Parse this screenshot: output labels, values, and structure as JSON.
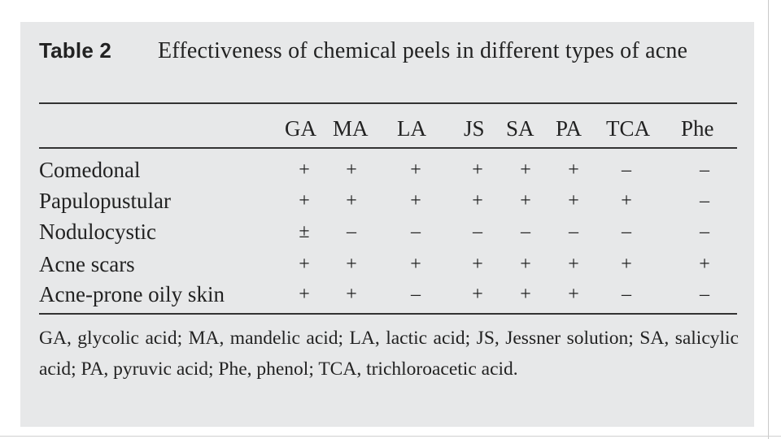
{
  "table": {
    "label": "Table 2",
    "title": "Effectiveness of chemical peels in different types of acne",
    "columns": [
      "GA",
      "MA",
      "LA",
      "JS",
      "SA",
      "PA",
      "TCA",
      "Phe"
    ],
    "rows": [
      {
        "label": "Comedonal",
        "values": [
          "+",
          "+",
          "+",
          "+",
          "+",
          "+",
          "–",
          "–"
        ]
      },
      {
        "label": "Papulopustular",
        "values": [
          "+",
          "+",
          "+",
          "+",
          "+",
          "+",
          "+",
          "–"
        ]
      },
      {
        "label": "Nodulocystic",
        "values": [
          "±",
          "–",
          "–",
          "–",
          "–",
          "–",
          "–",
          "–"
        ]
      },
      {
        "label": "Acne scars",
        "values": [
          "+",
          "+",
          "+",
          "+",
          "+",
          "+",
          "+",
          "+"
        ]
      },
      {
        "label": "Acne-prone oily skin",
        "values": [
          "+",
          "+",
          "–",
          "+",
          "+",
          "+",
          "–",
          "–"
        ]
      }
    ],
    "footnote": "GA, glycolic acid; MA, mandelic acid; LA, lactic acid; JS, Jessner solution; SA, salicylic acid; PA, pyruvic acid; Phe, phenol; TCA, trichloroacetic acid."
  }
}
